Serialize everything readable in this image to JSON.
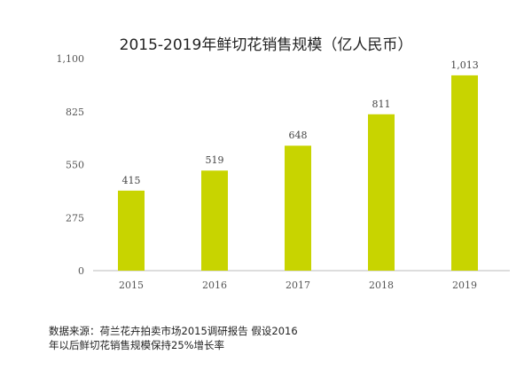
{
  "chart_data": {
    "type": "bar",
    "title": "2015-2019年鲜切花销售规模（亿人民币）",
    "categories": [
      "2015",
      "2016",
      "2017",
      "2018",
      "2019"
    ],
    "values": [
      415,
      519,
      648,
      811,
      1013
    ],
    "value_labels": [
      "415",
      "519",
      "648",
      "811",
      "1,013"
    ],
    "yticks": [
      0,
      275,
      550,
      825,
      1100
    ],
    "ytick_labels": [
      "0",
      "275",
      "550",
      "825",
      "1,100"
    ],
    "ylim": [
      0,
      1100
    ],
    "xlabel": "",
    "ylabel": "",
    "grid": false,
    "bar_color": "#c8d400"
  },
  "note": "数据来源：荷兰花卉拍卖市场2015调研报告 假设2016年以后鲜切花销售规模保持25%增长率"
}
